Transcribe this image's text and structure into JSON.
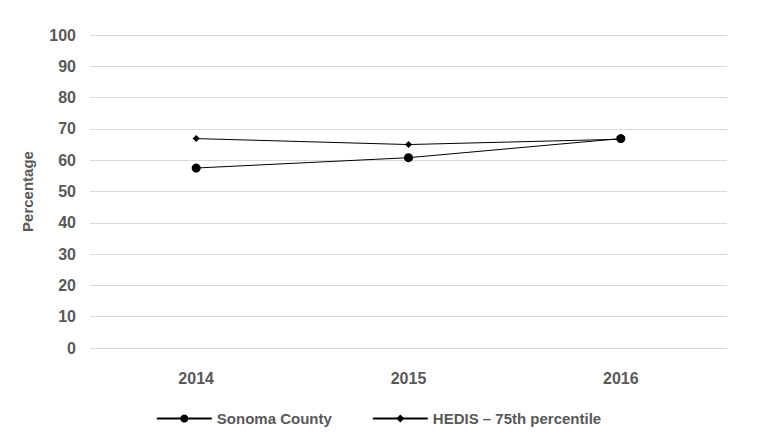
{
  "chart_data": {
    "type": "line",
    "ylabel": "Percentage",
    "categories": [
      "2014",
      "2015",
      "2016"
    ],
    "series": [
      {
        "name": "Sonoma County",
        "color": "#000000",
        "marker": "circle",
        "values": [
          57.5,
          60.8,
          66.9
        ]
      },
      {
        "name": "HEDIS – 75th percentile",
        "color": "#000000",
        "marker": "diamond",
        "values": [
          66.9,
          65.0,
          66.7
        ]
      }
    ],
    "ylim": [
      0,
      100
    ],
    "yticks": [
      0,
      10,
      20,
      30,
      40,
      50,
      60,
      70,
      80,
      90,
      100
    ],
    "grid": true,
    "legend": "bottom"
  }
}
